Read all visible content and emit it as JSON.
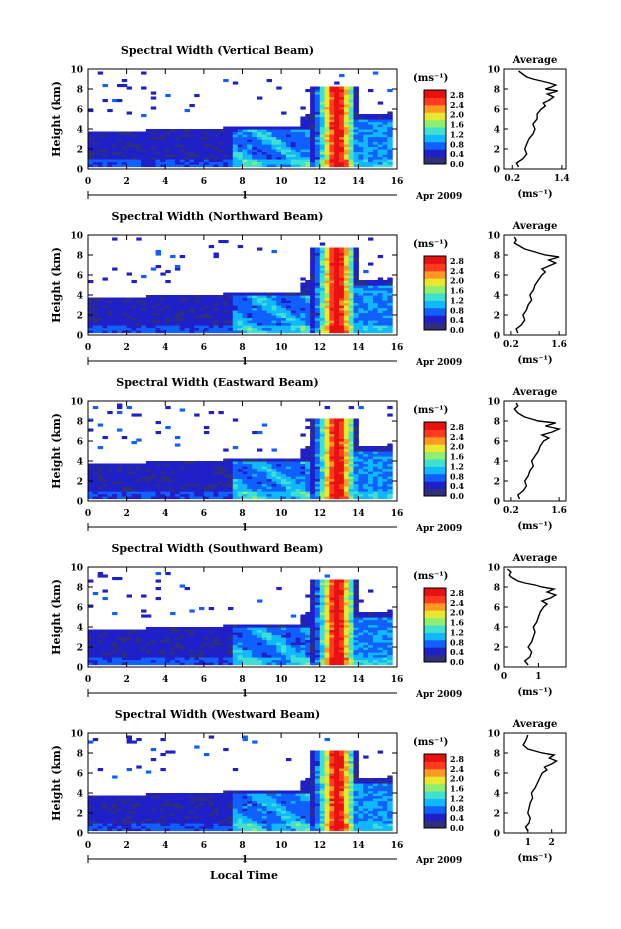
{
  "figure": {
    "xlabel": "Local Time",
    "date_label": "Apr 2009",
    "day_marker": "1"
  },
  "colorbar": {
    "unit_label": "(ms⁻¹)",
    "ticks": [
      "2.8",
      "2.4",
      "2.0",
      "1.6",
      "1.2",
      "0.8",
      "0.4",
      "0.0"
    ],
    "range": [
      0.0,
      3.0
    ],
    "colors": [
      "#30307a",
      "#2020c8",
      "#1060ff",
      "#10b8ff",
      "#40e0d0",
      "#90ee70",
      "#e8e830",
      "#ff9a20",
      "#ff3a20",
      "#e81010"
    ]
  },
  "chart_data": [
    {
      "type": "heatmap",
      "title": "Spectral Width (Vertical Beam)",
      "ylabel": "Height (km)",
      "xticks": [
        "0",
        "2",
        "4",
        "6",
        "8",
        "10",
        "12",
        "14",
        "16"
      ],
      "yticks": [
        "0",
        "2",
        "4",
        "6",
        "8",
        "10"
      ],
      "xlim": [
        0,
        16
      ],
      "ylim": [
        0,
        10
      ],
      "profile": {
        "title": "Average",
        "xlabel": "(ms⁻¹)",
        "xticks": [
          "0.2",
          "1.4"
        ],
        "xtick_vals": [
          0.2,
          1.4
        ],
        "xlim": [
          0,
          1.5
        ],
        "yticks": [
          "0",
          "2",
          "4",
          "6",
          "8",
          "10"
        ],
        "x": [
          0.35,
          0.3,
          0.45,
          0.55,
          0.5,
          0.55,
          0.6,
          0.7,
          0.75,
          0.7,
          0.8,
          0.8,
          0.9,
          1.0,
          0.95,
          1.1,
          1.2,
          1.05,
          1.3,
          1.0,
          1.15,
          1.25,
          1.1,
          0.9,
          0.7,
          0.55,
          0.45,
          0.35
        ],
        "y": [
          0.2,
          0.6,
          1.0,
          1.5,
          2.0,
          2.5,
          3.0,
          3.5,
          4.0,
          4.5,
          5.0,
          5.5,
          6.0,
          6.3,
          6.6,
          6.9,
          7.2,
          7.5,
          7.8,
          8.0,
          8.2,
          8.4,
          8.6,
          8.8,
          9.0,
          9.2,
          9.5,
          9.8
        ]
      }
    },
    {
      "type": "heatmap",
      "title": "Spectral Width (Northward Beam)",
      "ylabel": "Height (km)",
      "xticks": [
        "0",
        "2",
        "4",
        "6",
        "8",
        "10",
        "12",
        "14",
        "16"
      ],
      "yticks": [
        "0",
        "2",
        "4",
        "6",
        "8",
        "10"
      ],
      "xlim": [
        0,
        16
      ],
      "ylim": [
        0,
        10
      ],
      "profile": {
        "title": "Average",
        "xlabel": "(ms⁻¹)",
        "xticks": [
          "0.2",
          "1.6"
        ],
        "xtick_vals": [
          0.2,
          1.6
        ],
        "xlim": [
          0,
          1.8
        ],
        "yticks": [
          "0",
          "2",
          "4",
          "6",
          "8",
          "10"
        ],
        "x": [
          0.4,
          0.35,
          0.5,
          0.6,
          0.55,
          0.65,
          0.7,
          0.8,
          0.75,
          0.85,
          0.9,
          1.0,
          1.1,
          1.2,
          1.1,
          1.3,
          1.5,
          1.3,
          1.6,
          1.2,
          1.0,
          0.8,
          0.6,
          0.5,
          0.4,
          0.3,
          0.35,
          0.3
        ],
        "y": [
          0.2,
          0.6,
          1.0,
          1.5,
          2.0,
          2.5,
          3.0,
          3.5,
          4.0,
          4.5,
          5.0,
          5.5,
          6.0,
          6.3,
          6.6,
          6.9,
          7.2,
          7.5,
          7.8,
          8.0,
          8.2,
          8.4,
          8.6,
          8.8,
          9.0,
          9.2,
          9.5,
          9.8
        ]
      }
    },
    {
      "type": "heatmap",
      "title": "Spectral Width (Eastward Beam)",
      "ylabel": "Height (km)",
      "xticks": [
        "0",
        "2",
        "4",
        "6",
        "8",
        "10",
        "12",
        "14",
        "16"
      ],
      "yticks": [
        "0",
        "2",
        "4",
        "6",
        "8",
        "10"
      ],
      "xlim": [
        0,
        16
      ],
      "ylim": [
        0,
        10
      ],
      "profile": {
        "title": "Average",
        "xlabel": "(ms⁻¹)",
        "xticks": [
          "0.2",
          "1.6"
        ],
        "xtick_vals": [
          0.2,
          1.6
        ],
        "xlim": [
          0,
          1.8
        ],
        "yticks": [
          "0",
          "2",
          "4",
          "6",
          "8",
          "10"
        ],
        "x": [
          0.45,
          0.4,
          0.55,
          0.65,
          0.6,
          0.7,
          0.75,
          0.85,
          0.8,
          0.9,
          1.0,
          1.05,
          1.15,
          1.3,
          1.1,
          1.4,
          1.6,
          1.2,
          1.5,
          1.0,
          0.8,
          0.6,
          0.5,
          0.4,
          0.35,
          0.3,
          0.4,
          0.35
        ],
        "y": [
          0.2,
          0.6,
          1.0,
          1.5,
          2.0,
          2.5,
          3.0,
          3.5,
          4.0,
          4.5,
          5.0,
          5.5,
          6.0,
          6.3,
          6.6,
          6.9,
          7.2,
          7.5,
          7.8,
          8.0,
          8.2,
          8.4,
          8.6,
          8.8,
          9.0,
          9.2,
          9.5,
          9.8
        ]
      }
    },
    {
      "type": "heatmap",
      "title": "Spectral Width (Southward Beam)",
      "ylabel": "Height (km)",
      "xticks": [
        "0",
        "2",
        "4",
        "6",
        "8",
        "10",
        "12",
        "14",
        "16"
      ],
      "yticks": [
        "0",
        "2",
        "4",
        "6",
        "8",
        "10"
      ],
      "xlim": [
        0,
        16
      ],
      "ylim": [
        0,
        10
      ],
      "profile": {
        "title": "Average",
        "xlabel": "(ms⁻¹)",
        "xticks": [
          "0",
          "1"
        ],
        "xtick_vals": [
          0,
          1
        ],
        "xlim": [
          0,
          1.8
        ],
        "yticks": [
          "0",
          "2",
          "4",
          "6",
          "8",
          "10"
        ],
        "x": [
          0.7,
          0.6,
          0.75,
          0.8,
          0.7,
          0.8,
          0.85,
          0.9,
          0.85,
          0.95,
          1.0,
          1.05,
          1.15,
          1.25,
          1.1,
          1.35,
          1.5,
          1.25,
          1.45,
          1.1,
          0.9,
          0.6,
          0.4,
          0.3,
          0.2,
          0.15,
          0.2,
          0.1
        ],
        "y": [
          0.2,
          0.6,
          1.0,
          1.5,
          2.0,
          2.5,
          3.0,
          3.5,
          4.0,
          4.5,
          5.0,
          5.5,
          6.0,
          6.3,
          6.6,
          6.9,
          7.2,
          7.5,
          7.8,
          8.0,
          8.2,
          8.4,
          8.6,
          8.8,
          9.0,
          9.2,
          9.5,
          9.8
        ]
      }
    },
    {
      "type": "heatmap",
      "title": "Spectral Width (Westward Beam)",
      "ylabel": "Height (km)",
      "xticks": [
        "0",
        "2",
        "4",
        "6",
        "8",
        "10",
        "12",
        "14",
        "16"
      ],
      "yticks": [
        "0",
        "2",
        "4",
        "6",
        "8",
        "10"
      ],
      "xlim": [
        0,
        16
      ],
      "ylim": [
        0,
        10
      ],
      "profile": {
        "title": "Average",
        "xlabel": "(ms⁻¹)",
        "xticks": [
          "1",
          "2"
        ],
        "xtick_vals": [
          1,
          2
        ],
        "xlim": [
          0,
          2.6
        ],
        "yticks": [
          "0",
          "2",
          "4",
          "6",
          "8",
          "10"
        ],
        "x": [
          1.0,
          0.9,
          1.05,
          1.1,
          1.0,
          1.05,
          1.1,
          1.2,
          1.15,
          1.3,
          1.4,
          1.5,
          1.6,
          1.8,
          1.7,
          2.0,
          2.2,
          1.9,
          2.1,
          1.6,
          1.3,
          1.0,
          0.9,
          0.8,
          0.85,
          0.9,
          0.95,
          1.0
        ],
        "y": [
          0.2,
          0.6,
          1.0,
          1.5,
          2.0,
          2.5,
          3.0,
          3.5,
          4.0,
          4.5,
          5.0,
          5.5,
          6.0,
          6.3,
          6.6,
          6.9,
          7.2,
          7.5,
          7.8,
          8.0,
          8.2,
          8.4,
          8.6,
          8.8,
          9.0,
          9.2,
          9.5,
          9.8
        ]
      }
    }
  ]
}
